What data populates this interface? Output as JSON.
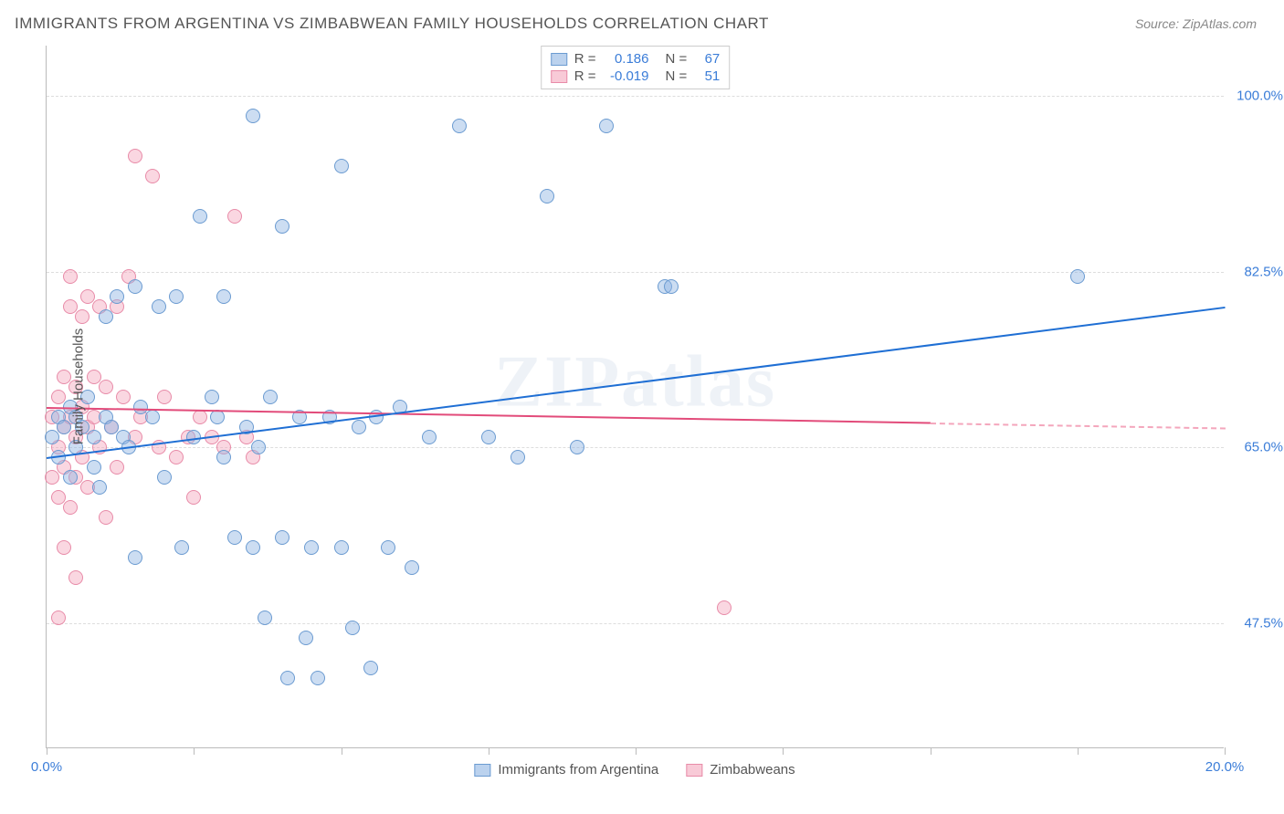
{
  "title": "IMMIGRANTS FROM ARGENTINA VS ZIMBABWEAN FAMILY HOUSEHOLDS CORRELATION CHART",
  "source": "Source: ZipAtlas.com",
  "watermark": "ZIPatlas",
  "chart": {
    "type": "scatter",
    "xlim": [
      0,
      20
    ],
    "ylim": [
      35,
      105
    ],
    "x_ticks": [
      0,
      2.5,
      5,
      7.5,
      10,
      12.5,
      15,
      17.5,
      20
    ],
    "x_tick_labels": {
      "0": "0.0%",
      "20": "20.0%"
    },
    "y_gridlines": [
      47.5,
      65,
      82.5,
      100
    ],
    "y_tick_labels": {
      "47.5": "47.5%",
      "65": "65.0%",
      "82.5": "82.5%",
      "100": "100.0%"
    },
    "ylabel": "Family Households",
    "background_color": "#ffffff",
    "grid_color": "#dddddd",
    "axis_color": "#bbbbbb",
    "marker_radius": 8,
    "series": {
      "argentina": {
        "label": "Immigrants from Argentina",
        "color_fill": "#8db4e2",
        "color_stroke": "#6b9bd1",
        "R": "0.186",
        "N": "67",
        "trend": {
          "x1": 0,
          "y1": 64,
          "x2": 20,
          "y2": 79,
          "color": "#1f6fd4"
        },
        "points": [
          [
            0.1,
            66
          ],
          [
            0.2,
            68
          ],
          [
            0.2,
            64
          ],
          [
            0.3,
            67
          ],
          [
            0.4,
            69
          ],
          [
            0.4,
            62
          ],
          [
            0.5,
            68
          ],
          [
            0.5,
            65
          ],
          [
            0.6,
            67
          ],
          [
            0.7,
            70
          ],
          [
            0.8,
            66
          ],
          [
            0.8,
            63
          ],
          [
            0.9,
            61
          ],
          [
            1.0,
            68
          ],
          [
            1.0,
            78
          ],
          [
            1.1,
            67
          ],
          [
            1.2,
            80
          ],
          [
            1.3,
            66
          ],
          [
            1.4,
            65
          ],
          [
            1.5,
            81
          ],
          [
            1.5,
            54
          ],
          [
            1.6,
            69
          ],
          [
            1.8,
            68
          ],
          [
            1.9,
            79
          ],
          [
            2.0,
            62
          ],
          [
            2.2,
            80
          ],
          [
            2.3,
            55
          ],
          [
            2.5,
            66
          ],
          [
            2.6,
            88
          ],
          [
            2.8,
            70
          ],
          [
            2.9,
            68
          ],
          [
            3.0,
            64
          ],
          [
            3.2,
            56
          ],
          [
            3.4,
            67
          ],
          [
            3.5,
            98
          ],
          [
            3.5,
            55
          ],
          [
            3.6,
            65
          ],
          [
            3.7,
            48
          ],
          [
            3.8,
            70
          ],
          [
            4.0,
            87
          ],
          [
            4.0,
            56
          ],
          [
            4.1,
            42
          ],
          [
            4.3,
            68
          ],
          [
            4.4,
            46
          ],
          [
            4.5,
            55
          ],
          [
            4.6,
            42
          ],
          [
            4.8,
            68
          ],
          [
            5.0,
            93
          ],
          [
            5.0,
            55
          ],
          [
            5.2,
            47
          ],
          [
            5.3,
            67
          ],
          [
            5.5,
            43
          ],
          [
            5.6,
            68
          ],
          [
            5.8,
            55
          ],
          [
            6.0,
            69
          ],
          [
            6.2,
            53
          ],
          [
            6.5,
            66
          ],
          [
            7.0,
            97
          ],
          [
            8.0,
            64
          ],
          [
            8.5,
            90
          ],
          [
            9.0,
            65
          ],
          [
            9.5,
            97
          ],
          [
            10.5,
            81
          ],
          [
            10.6,
            81
          ],
          [
            17.5,
            82
          ],
          [
            7.5,
            66
          ],
          [
            3.0,
            80
          ]
        ]
      },
      "zimbabwe": {
        "label": "Zimbabweans",
        "color_fill": "#f4a6bc",
        "color_stroke": "#e88ba8",
        "R": "-0.019",
        "N": "51",
        "trend": {
          "x1": 0,
          "y1": 69,
          "x2": 15,
          "y2": 67.5,
          "color": "#e24b7a"
        },
        "trend_dash": {
          "x1": 15,
          "y1": 67.5,
          "x2": 20,
          "y2": 67
        },
        "points": [
          [
            0.1,
            62
          ],
          [
            0.1,
            68
          ],
          [
            0.2,
            65
          ],
          [
            0.2,
            70
          ],
          [
            0.2,
            60
          ],
          [
            0.3,
            72
          ],
          [
            0.3,
            67
          ],
          [
            0.3,
            63
          ],
          [
            0.4,
            82
          ],
          [
            0.4,
            68
          ],
          [
            0.4,
            59
          ],
          [
            0.4,
            79
          ],
          [
            0.5,
            71
          ],
          [
            0.5,
            66
          ],
          [
            0.5,
            62
          ],
          [
            0.6,
            78
          ],
          [
            0.6,
            69
          ],
          [
            0.6,
            64
          ],
          [
            0.7,
            80
          ],
          [
            0.7,
            67
          ],
          [
            0.7,
            61
          ],
          [
            0.8,
            72
          ],
          [
            0.8,
            68
          ],
          [
            0.9,
            79
          ],
          [
            0.9,
            65
          ],
          [
            1.0,
            71
          ],
          [
            1.0,
            58
          ],
          [
            1.1,
            67
          ],
          [
            1.2,
            79
          ],
          [
            1.2,
            63
          ],
          [
            1.3,
            70
          ],
          [
            1.4,
            82
          ],
          [
            1.5,
            66
          ],
          [
            1.5,
            94
          ],
          [
            1.6,
            68
          ],
          [
            1.8,
            92
          ],
          [
            1.9,
            65
          ],
          [
            2.0,
            70
          ],
          [
            2.2,
            64
          ],
          [
            2.4,
            66
          ],
          [
            2.5,
            60
          ],
          [
            2.6,
            68
          ],
          [
            2.8,
            66
          ],
          [
            3.0,
            65
          ],
          [
            3.2,
            88
          ],
          [
            3.4,
            66
          ],
          [
            3.5,
            64
          ],
          [
            0.2,
            48
          ],
          [
            0.3,
            55
          ],
          [
            0.5,
            52
          ],
          [
            11.5,
            49
          ]
        ]
      }
    }
  }
}
